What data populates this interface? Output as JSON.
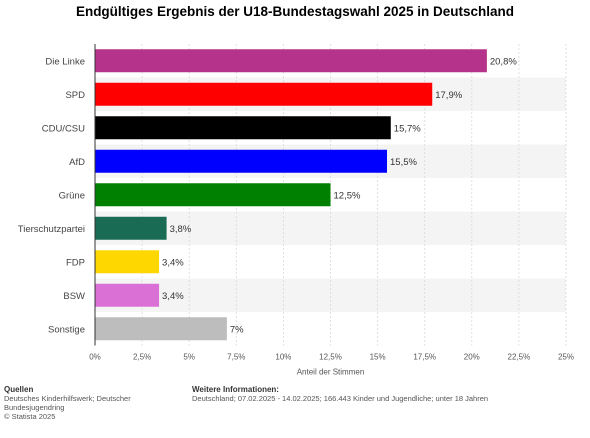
{
  "title": "Endgültiges Ergebnis der U18-Bundestagswahl 2025 in Deutschland",
  "chart_data": {
    "type": "bar",
    "orientation": "horizontal",
    "title": "Endgültiges Ergebnis der U18-Bundestagswahl 2025 in Deutschland",
    "xlabel": "Anteil der Stimmen",
    "ylabel": "",
    "xlim": [
      0,
      25
    ],
    "grid": true,
    "categories": [
      "Die Linke",
      "SPD",
      "CDU/CSU",
      "AfD",
      "Grüne",
      "Tierschutzpartei",
      "FDP",
      "BSW",
      "Sonstige"
    ],
    "values": [
      20.8,
      17.9,
      15.7,
      15.5,
      12.5,
      3.8,
      3.4,
      3.4,
      7
    ],
    "value_labels": [
      "20,8%",
      "17,9%",
      "15,7%",
      "15,5%",
      "12,5%",
      "3,8%",
      "3,4%",
      "3,4%",
      "7%"
    ],
    "colors": [
      "#b5338a",
      "#ff0000",
      "#000000",
      "#0000ff",
      "#008000",
      "#1a6b54",
      "#ffd700",
      "#da70d6",
      "#bdbdbd"
    ],
    "ticks": [
      0,
      2.5,
      5,
      7.5,
      10,
      12.5,
      15,
      17.5,
      20,
      22.5,
      25
    ],
    "tick_labels": [
      "0%",
      "2,5%",
      "5%",
      "7,5%",
      "10%",
      "12,5%",
      "15%",
      "17,5%",
      "20%",
      "22,5%",
      "25%"
    ]
  },
  "footer": {
    "sources_heading": "Quellen",
    "sources_text": "Deutsches Kinderhilfswerk; Deutscher Bundesjugendring",
    "copyright": "© Statista 2025",
    "info_heading": "Weitere Informationen:",
    "info_text": "Deutschland; 07.02.2025 - 14.02.2025; 166.443 Kinder und Jugendliche; unter 18 Jahren"
  }
}
